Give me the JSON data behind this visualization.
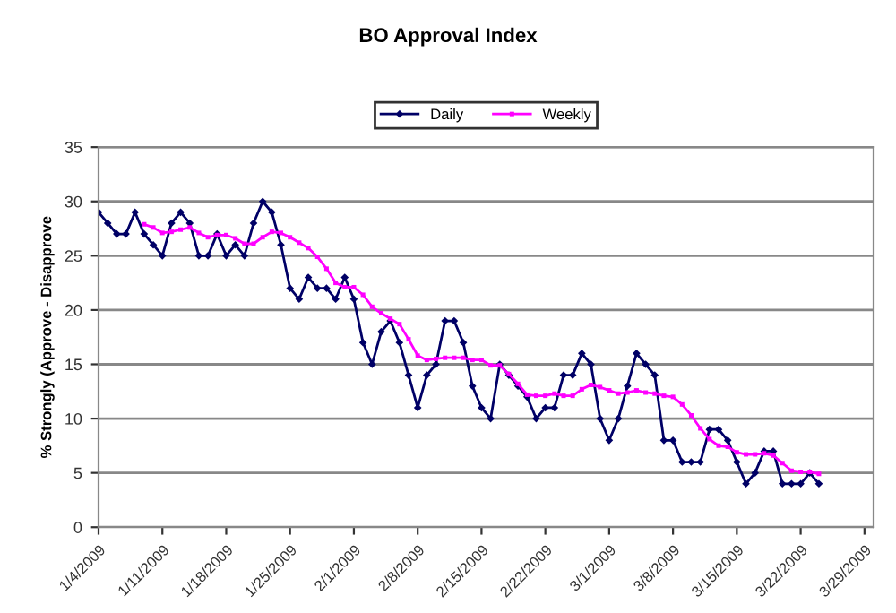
{
  "chart_data": {
    "type": "line",
    "title": "BO Approval Index",
    "ylabel": "% Strongly (Approve - Disapprove",
    "xlim": [
      "2009-01-04",
      "2009-03-30"
    ],
    "xticks": [
      {
        "value": "2009-01-04",
        "label": "1/4/2009"
      },
      {
        "value": "2009-01-11",
        "label": "1/11/2009"
      },
      {
        "value": "2009-01-18",
        "label": "1/18/2009"
      },
      {
        "value": "2009-01-25",
        "label": "1/25/2009"
      },
      {
        "value": "2009-02-01",
        "label": "2/1/2009"
      },
      {
        "value": "2009-02-08",
        "label": "2/8/2009"
      },
      {
        "value": "2009-02-15",
        "label": "2/15/2009"
      },
      {
        "value": "2009-02-22",
        "label": "2/22/2009"
      },
      {
        "value": "2009-03-01",
        "label": "3/1/2009"
      },
      {
        "value": "2009-03-08",
        "label": "3/8/2009"
      },
      {
        "value": "2009-03-15",
        "label": "3/15/2009"
      },
      {
        "value": "2009-03-22",
        "label": "3/22/2009"
      },
      {
        "value": "2009-03-29",
        "label": "3/29/2009"
      }
    ],
    "ylim": [
      0,
      35
    ],
    "yticks": [
      0,
      5,
      10,
      15,
      20,
      25,
      30,
      35
    ],
    "grid": "y",
    "legend": "top",
    "line_style": "solid",
    "series": [
      {
        "name": "Daily",
        "color": "#000066",
        "marker": "diamond",
        "x": [
          "2009-01-04",
          "2009-01-05",
          "2009-01-06",
          "2009-01-07",
          "2009-01-08",
          "2009-01-09",
          "2009-01-10",
          "2009-01-11",
          "2009-01-12",
          "2009-01-13",
          "2009-01-14",
          "2009-01-15",
          "2009-01-16",
          "2009-01-17",
          "2009-01-18",
          "2009-01-19",
          "2009-01-20",
          "2009-01-21",
          "2009-01-22",
          "2009-01-23",
          "2009-01-24",
          "2009-01-25",
          "2009-01-26",
          "2009-01-27",
          "2009-01-28",
          "2009-01-29",
          "2009-01-30",
          "2009-01-31",
          "2009-02-01",
          "2009-02-02",
          "2009-02-03",
          "2009-02-04",
          "2009-02-05",
          "2009-02-06",
          "2009-02-07",
          "2009-02-08",
          "2009-02-09",
          "2009-02-10",
          "2009-02-11",
          "2009-02-12",
          "2009-02-13",
          "2009-02-14",
          "2009-02-15",
          "2009-02-16",
          "2009-02-17",
          "2009-02-18",
          "2009-02-19",
          "2009-02-20",
          "2009-02-21",
          "2009-02-22",
          "2009-02-23",
          "2009-02-24",
          "2009-02-25",
          "2009-02-26",
          "2009-02-27",
          "2009-02-28",
          "2009-03-01",
          "2009-03-02",
          "2009-03-03",
          "2009-03-04",
          "2009-03-05",
          "2009-03-06",
          "2009-03-07",
          "2009-03-08",
          "2009-03-09",
          "2009-03-10",
          "2009-03-11",
          "2009-03-12",
          "2009-03-13",
          "2009-03-14",
          "2009-03-15",
          "2009-03-16",
          "2009-03-17",
          "2009-03-18",
          "2009-03-19",
          "2009-03-20",
          "2009-03-21",
          "2009-03-22",
          "2009-03-23",
          "2009-03-24"
        ],
        "values": [
          29,
          28,
          27,
          27,
          29,
          27,
          26,
          25,
          28,
          29,
          28,
          25,
          25,
          27,
          25,
          26,
          25,
          28,
          30,
          29,
          26,
          22,
          21,
          23,
          22,
          22,
          21,
          23,
          21,
          17,
          15,
          18,
          19,
          17,
          14,
          11,
          14,
          15,
          19,
          19,
          17,
          13,
          11,
          10,
          15,
          14,
          13,
          12,
          10,
          11,
          11,
          14,
          14,
          16,
          15,
          10,
          8,
          10,
          13,
          16,
          15,
          14,
          8,
          8,
          6,
          6,
          6,
          9,
          9,
          8,
          6,
          4,
          5,
          7,
          7,
          4,
          4,
          4,
          5,
          4
        ]
      },
      {
        "name": "Weekly",
        "color": "#ff00ff",
        "marker": "square",
        "x": [
          "2009-01-09",
          "2009-01-10",
          "2009-01-11",
          "2009-01-12",
          "2009-01-13",
          "2009-01-14",
          "2009-01-15",
          "2009-01-16",
          "2009-01-17",
          "2009-01-18",
          "2009-01-19",
          "2009-01-20",
          "2009-01-21",
          "2009-01-22",
          "2009-01-23",
          "2009-01-24",
          "2009-01-25",
          "2009-01-26",
          "2009-01-27",
          "2009-01-28",
          "2009-01-29",
          "2009-01-30",
          "2009-01-31",
          "2009-02-01",
          "2009-02-02",
          "2009-02-03",
          "2009-02-04",
          "2009-02-05",
          "2009-02-06",
          "2009-02-07",
          "2009-02-08",
          "2009-02-09",
          "2009-02-10",
          "2009-02-11",
          "2009-02-12",
          "2009-02-13",
          "2009-02-14",
          "2009-02-15",
          "2009-02-16",
          "2009-02-17",
          "2009-02-18",
          "2009-02-19",
          "2009-02-20",
          "2009-02-21",
          "2009-02-22",
          "2009-02-23",
          "2009-02-24",
          "2009-02-25",
          "2009-02-26",
          "2009-02-27",
          "2009-02-28",
          "2009-03-01",
          "2009-03-02",
          "2009-03-03",
          "2009-03-04",
          "2009-03-05",
          "2009-03-06",
          "2009-03-07",
          "2009-03-08",
          "2009-03-09",
          "2009-03-10",
          "2009-03-11",
          "2009-03-12",
          "2009-03-13",
          "2009-03-14",
          "2009-03-15",
          "2009-03-16",
          "2009-03-17",
          "2009-03-18",
          "2009-03-19",
          "2009-03-20",
          "2009-03-21",
          "2009-03-22",
          "2009-03-23",
          "2009-03-24"
        ],
        "values": [
          27.9,
          27.6,
          27.1,
          27.2,
          27.4,
          27.6,
          27.1,
          26.7,
          26.9,
          26.9,
          26.6,
          26.1,
          26.1,
          26.7,
          27.2,
          27.1,
          26.7,
          26.2,
          25.7,
          24.9,
          23.8,
          22.5,
          22.1,
          22.1,
          21.4,
          20.3,
          19.7,
          19.2,
          18.7,
          17.3,
          15.8,
          15.4,
          15.5,
          15.6,
          15.6,
          15.6,
          15.4,
          15.4,
          14.9,
          14.9,
          14.1,
          13.2,
          12.2,
          12.1,
          12.1,
          12.3,
          12.1,
          12.1,
          12.7,
          13.1,
          12.9,
          12.6,
          12.3,
          12.4,
          12.6,
          12.4,
          12.3,
          12.1,
          12.0,
          11.3,
          10.3,
          9.1,
          8.1,
          7.5,
          7.4,
          6.9,
          6.7,
          6.7,
          6.8,
          6.6,
          5.9,
          5.2,
          5.1,
          5.1,
          4.9
        ]
      }
    ]
  }
}
